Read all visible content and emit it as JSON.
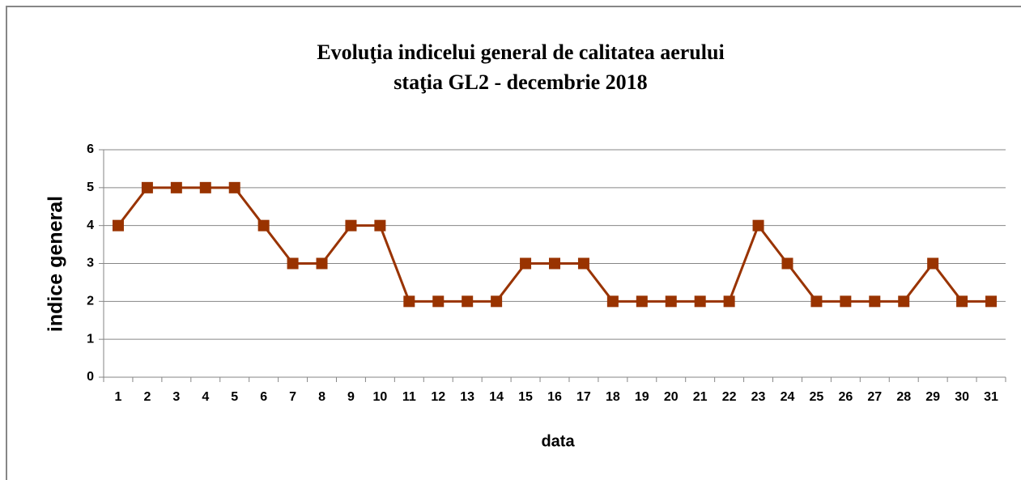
{
  "chart_data": {
    "type": "line",
    "title": "Evoluţia indicelui general de calitatea aerului",
    "subtitle": "staţia GL2 - decembrie 2018",
    "x_label": "data",
    "y_label": "indice general",
    "categories": [
      "1",
      "2",
      "3",
      "4",
      "5",
      "6",
      "7",
      "8",
      "9",
      "10",
      "11",
      "12",
      "13",
      "14",
      "15",
      "16",
      "17",
      "18",
      "19",
      "20",
      "21",
      "22",
      "23",
      "24",
      "25",
      "26",
      "27",
      "28",
      "29",
      "30",
      "31"
    ],
    "series": [
      {
        "name": "indice general",
        "color": "#993300",
        "values": [
          4,
          5,
          5,
          5,
          5,
          4,
          3,
          3,
          4,
          4,
          2,
          2,
          2,
          2,
          3,
          3,
          3,
          2,
          2,
          2,
          2,
          2,
          4,
          3,
          2,
          2,
          2,
          2,
          3,
          2,
          2
        ]
      }
    ],
    "ylim": [
      0,
      6
    ],
    "yticks": [
      0,
      1,
      2,
      3,
      4,
      5,
      6
    ],
    "grid": true,
    "marker": "square"
  }
}
